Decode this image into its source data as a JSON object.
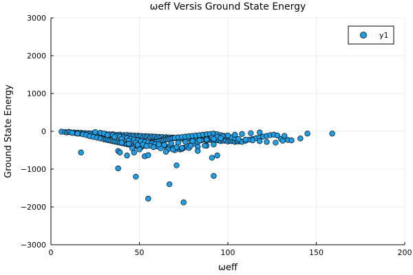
{
  "chart_data": {
    "type": "scatter",
    "title": "ωeff Versis Ground State Energy",
    "xlabel": "ωeff",
    "ylabel": "Ground State Energy",
    "xlim": [
      0,
      200
    ],
    "ylim": [
      -3000,
      3000
    ],
    "xticks": [
      0,
      50,
      100,
      150,
      200
    ],
    "yticks": [
      -3000,
      -2000,
      -1000,
      0,
      1000,
      2000,
      3000
    ],
    "grid": true,
    "legend": {
      "position": "top-right",
      "entries": [
        "y1"
      ]
    },
    "colors": {
      "marker": "#1f9fe6",
      "marker_edge": "#000000",
      "grid": "#ebebeb",
      "axis": "#000000"
    },
    "series": [
      {
        "name": "y1",
        "x": [
          6,
          8,
          9,
          10,
          11,
          12,
          13,
          14,
          15,
          16,
          17,
          18,
          19,
          20,
          21,
          22,
          23,
          24,
          25,
          26,
          27,
          28,
          29,
          30,
          31,
          32,
          33,
          34,
          35,
          36,
          37,
          38,
          39,
          40,
          41,
          42,
          43,
          44,
          45,
          46,
          47,
          48,
          49,
          50,
          51,
          52,
          53,
          54,
          55,
          56,
          57,
          58,
          59,
          60,
          61,
          62,
          63,
          64,
          65,
          66,
          67,
          68,
          69,
          70,
          71,
          72,
          73,
          74,
          75,
          76,
          77,
          78,
          79,
          80,
          81,
          82,
          83,
          84,
          85,
          86,
          87,
          88,
          89,
          90,
          91,
          92,
          93,
          94,
          95,
          96,
          97,
          98,
          99,
          100,
          101,
          102,
          103,
          104,
          105,
          106,
          107,
          108,
          110,
          112,
          114,
          116,
          118,
          120,
          122,
          124,
          126,
          128,
          130,
          132,
          134,
          136,
          141,
          145,
          159,
          12,
          15,
          18,
          20,
          22,
          24,
          26,
          28,
          30,
          31,
          32,
          33,
          34,
          35,
          36,
          37,
          38,
          39,
          40,
          41,
          42,
          43,
          44,
          45,
          46,
          47,
          48,
          49,
          50,
          51,
          52,
          53,
          54,
          55,
          56,
          57,
          58,
          59,
          60,
          61,
          62,
          63,
          64,
          65,
          66,
          67,
          68,
          69,
          70,
          72,
          74,
          76,
          78,
          80,
          82,
          84,
          86,
          88,
          90,
          92,
          94,
          96,
          98,
          100,
          102,
          104,
          106,
          110,
          114,
          118,
          122,
          127,
          131,
          25,
          28,
          30,
          33,
          35,
          37,
          39,
          41,
          43,
          45,
          47,
          49,
          51,
          53,
          55,
          57,
          59,
          61,
          63,
          65,
          67,
          69,
          71,
          73,
          75,
          77,
          79,
          81,
          83,
          85,
          88,
          91,
          94,
          97,
          100,
          104,
          108,
          113,
          118,
          32,
          36,
          40,
          44,
          48,
          52,
          56,
          60,
          64,
          68,
          72,
          76,
          80,
          84,
          88,
          92,
          96,
          40,
          44,
          49,
          54,
          58,
          62,
          66,
          70,
          74,
          78,
          83,
          88,
          92,
          17,
          38,
          39,
          43,
          46,
          47,
          50,
          53,
          55,
          61,
          65,
          69,
          71,
          74,
          79,
          83,
          87,
          91,
          94,
          38,
          48,
          67,
          71,
          92,
          55,
          75
        ],
        "y": [
          -10,
          -20,
          -30,
          -15,
          -25,
          -40,
          -30,
          -50,
          -35,
          -60,
          -40,
          -55,
          -45,
          -70,
          -50,
          -60,
          -55,
          -80,
          -60,
          -70,
          -65,
          -90,
          -75,
          -80,
          -70,
          -100,
          -85,
          -90,
          -80,
          -110,
          -95,
          -100,
          -90,
          -120,
          -100,
          -110,
          -95,
          -130,
          -105,
          -120,
          -110,
          -140,
          -115,
          -130,
          -120,
          -150,
          -125,
          -140,
          -130,
          -160,
          -135,
          -150,
          -140,
          -170,
          -145,
          -160,
          -150,
          -180,
          -155,
          -170,
          -160,
          -190,
          -165,
          -180,
          -170,
          -200,
          -175,
          -190,
          -180,
          -210,
          -185,
          -200,
          -190,
          -220,
          -195,
          -210,
          -200,
          -230,
          -205,
          -220,
          -210,
          -240,
          -215,
          -230,
          -220,
          -250,
          -225,
          -240,
          -230,
          -260,
          -235,
          -250,
          -240,
          -270,
          -245,
          -260,
          -250,
          -280,
          -255,
          -270,
          -260,
          -280,
          -250,
          -220,
          -200,
          -180,
          -160,
          -140,
          -120,
          -100,
          -90,
          -110,
          -200,
          -120,
          -230,
          -240,
          -190,
          -60,
          -60,
          -40,
          -60,
          -80,
          -100,
          -130,
          -150,
          -170,
          -190,
          -210,
          -220,
          -230,
          -240,
          -250,
          -260,
          -270,
          -280,
          -290,
          -300,
          -310,
          -320,
          -330,
          -340,
          -350,
          -360,
          -370,
          -380,
          -390,
          -400,
          -410,
          -420,
          -390,
          -370,
          -350,
          -330,
          -310,
          -300,
          -290,
          -280,
          -270,
          -260,
          -250,
          -240,
          -230,
          -220,
          -210,
          -200,
          -190,
          -180,
          -170,
          -160,
          -150,
          -140,
          -130,
          -120,
          -110,
          -100,
          -90,
          -80,
          -70,
          -60,
          -80,
          -100,
          -120,
          -140,
          -160,
          -180,
          -200,
          -220,
          -240,
          -260,
          -280,
          -300,
          -250,
          -20,
          -40,
          -60,
          -80,
          -100,
          -120,
          -140,
          -160,
          -180,
          -200,
          -220,
          -240,
          -260,
          -280,
          -300,
          -320,
          -340,
          -360,
          -380,
          -400,
          -420,
          -440,
          -460,
          -480,
          -440,
          -400,
          -360,
          -320,
          -280,
          -240,
          -200,
          -170,
          -150,
          -130,
          -110,
          -90,
          -70,
          -50,
          -30,
          -100,
          -150,
          -200,
          -250,
          -300,
          -350,
          -380,
          -400,
          -360,
          -320,
          -300,
          -280,
          -260,
          -240,
          -220,
          -200,
          -180,
          -300,
          -330,
          -360,
          -390,
          -420,
          -450,
          -480,
          -500,
          -470,
          -440,
          -410,
          -380,
          -350,
          -560,
          -520,
          -560,
          -640,
          -450,
          -560,
          -480,
          -660,
          -630,
          -350,
          -540,
          -480,
          -420,
          -440,
          -380,
          -520,
          -380,
          -700,
          -640,
          -980,
          -1200,
          -1400,
          -900,
          -1180,
          -1780,
          -1880
        ]
      }
    ]
  }
}
